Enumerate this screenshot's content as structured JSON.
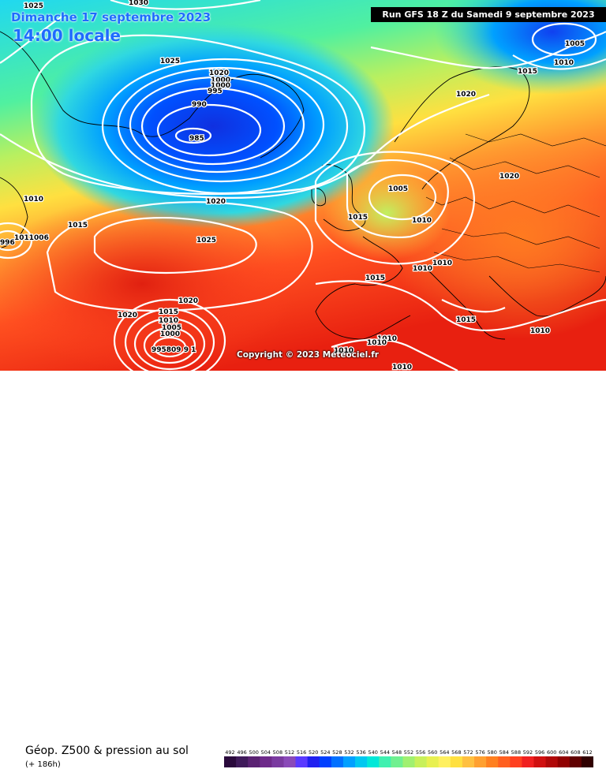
{
  "header": {
    "date_line": "Dimanche 17 septembre 2023",
    "time_line": "14:00 locale",
    "run_info": "Run GFS 18 Z du Samedi 9 septembre 2023"
  },
  "copyright": "Copyright © 2023 Meteociel.fr",
  "footer": {
    "parameter": "Géop. Z500 & pression au sol",
    "lead_time": "(+ 186h)"
  },
  "color_scale": {
    "ticks": [
      "492",
      "496",
      "500",
      "504",
      "508",
      "512",
      "516",
      "520",
      "524",
      "528",
      "532",
      "536",
      "540",
      "544",
      "548",
      "552",
      "556",
      "560",
      "564",
      "568",
      "572",
      "576",
      "580",
      "584",
      "588",
      "592",
      "596",
      "600",
      "604",
      "608",
      "612"
    ],
    "colors": [
      "#2a0a3c",
      "#3f1a5a",
      "#5a2272",
      "#6e2a8a",
      "#7a3aa0",
      "#8a4ab8",
      "#5a3aff",
      "#2020f0",
      "#0040ff",
      "#0070ff",
      "#00a0ff",
      "#00c8f0",
      "#00e8d8",
      "#40f0b0",
      "#70f090",
      "#a0f070",
      "#c8f05a",
      "#e8f050",
      "#fff060",
      "#ffe040",
      "#ffc040",
      "#ffa030",
      "#ff8020",
      "#ff6020",
      "#ff4020",
      "#f02020",
      "#d01010",
      "#b00808",
      "#900000",
      "#600000",
      "#300000"
    ]
  },
  "isobars": {
    "low_iceland": "985",
    "iso_990": "990",
    "iso_995": "995",
    "iso_1000": "1000",
    "iso_1005": "1005",
    "iso_1010": "1010",
    "iso_1015": "1015",
    "iso_1020": "1020",
    "iso_1025": "1025",
    "iso_1030": "1030"
  },
  "map_labels": {
    "l_1025_nw": "1025",
    "l_1030_top": "1030",
    "l_1025_left": "1025",
    "l_1020_ice": "1020",
    "l_1000_ice": "1000",
    "l_1000b_ice": "1000",
    "l_995_ice": "995",
    "l_990_ice": "990",
    "l_985_ice": "985",
    "l_1005_ne": "1005",
    "l_1010_ne": "1010",
    "l_1015_ne": "1015",
    "l_1020_scand": "1020",
    "l_1020_east": "1020",
    "l_1010_w": "1010",
    "l_1015_w": "1015",
    "l_1020_mid": "1020",
    "l_1025_mid": "1025",
    "l_1005_uk": "1005",
    "l_1015_uk": "1015",
    "l_1010_fr": "1010",
    "l_1010_al": "1010",
    "l_1010_al2": "1010",
    "l_1015_sp": "1015",
    "l_1015_it": "1015",
    "l_1010_gr": "1010",
    "l_1010_med1": "1010",
    "l_1010_med2": "1010",
    "l_1010_med3": "1010",
    "l_1010_bot": "1010",
    "l_1020_sw": "1020",
    "l_1020_sw2": "1020",
    "l_1015_low": "1015",
    "l_1010_low": "1010",
    "l_1005_low": "1005",
    "l_1000_low": "1000",
    "l_995_low": "995",
    "l_1011_w": "1011006",
    "l_996_w": "996",
    "l_low_sw": "995809 9 1"
  }
}
